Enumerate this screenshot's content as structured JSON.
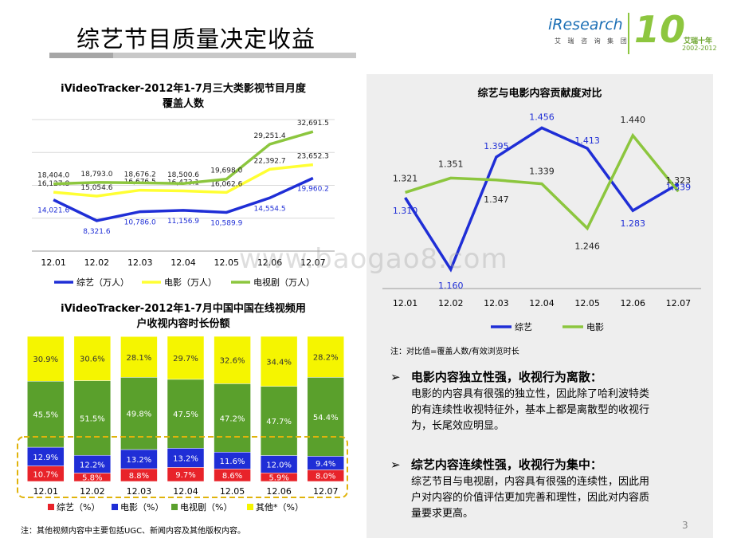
{
  "page": {
    "title": "综艺节目质量决定收益",
    "page_number": "3",
    "watermark": "www.baogao8.com"
  },
  "logo": {
    "brand": "iResearch",
    "brand_cn": "艾 瑞 咨 询 集 团",
    "anniv_text": "艾瑞十年",
    "anniv_years": "2002-2012",
    "anniv_number": "10",
    "brand_color": "#1c6fb5",
    "anniv_color": "#8dc63f"
  },
  "chart_data": [
    {
      "type": "line",
      "title_line1": "iVideoTracker-2012年1-7月三大类影视节目月度",
      "title_line2": "覆盖人数",
      "categories": [
        "12.01",
        "12.02",
        "12.03",
        "12.04",
        "12.05",
        "12.06",
        "12.07"
      ],
      "series": [
        {
          "name": "综艺（万人）",
          "color": "#1f2ed6",
          "values": [
            14021.6,
            8321.6,
            10786.0,
            11156.9,
            10589.9,
            14554.5,
            19960.2
          ],
          "labels": [
            "14,021.6",
            "8,321.6",
            "10,786.0",
            "11,156.9",
            "10,589.9",
            "14,554.5",
            "19,960.2"
          ]
        },
        {
          "name": "电影（万人）",
          "color": "#ffff33",
          "values": [
            16127.8,
            15054.6,
            16676.5,
            16473.1,
            16062.6,
            22392.7,
            23652.3
          ],
          "labels": [
            "16,127.8",
            "15,054.6",
            "16,676.5",
            "16,473.1",
            "16,062.6",
            "22,392.7",
            "23,652.3"
          ]
        },
        {
          "name": "电视剧（万人）",
          "color": "#8cc63e",
          "values": [
            18404.0,
            18793.0,
            18676.2,
            18500.6,
            19698.0,
            29251.4,
            32691.5
          ],
          "labels": [
            "18,404.0",
            "18,793.0",
            "18,676.2",
            "18,500.6",
            "19,698.0",
            "29,251.4",
            "32,691.5"
          ]
        }
      ],
      "ylim": [
        0,
        36000
      ]
    },
    {
      "type": "bar",
      "stacked": true,
      "title_line1": "iVideoTracker-2012年1-7月中国中国在线视频用",
      "title_line2": "户收视内容时长份额",
      "categories": [
        "12.01",
        "12.02",
        "12.03",
        "12.04",
        "12.05",
        "12.06",
        "12.07"
      ],
      "series": [
        {
          "name": "综艺（%）",
          "color": "#e8232a",
          "values": [
            10.7,
            5.8,
            8.8,
            9.7,
            8.6,
            5.9,
            8.0
          ],
          "labels": [
            "10.7%",
            "5.8%",
            "8.8%",
            "9.7%",
            "8.6%",
            "5.9%",
            "8.0%"
          ]
        },
        {
          "name": "电影（%）",
          "color": "#1f2ed6",
          "values": [
            12.9,
            12.2,
            13.2,
            13.2,
            11.6,
            12.0,
            9.4
          ],
          "labels": [
            "12.9%",
            "12.2%",
            "13.2%",
            "13.2%",
            "11.6%",
            "12.0%",
            "9.4%"
          ]
        },
        {
          "name": "电视剧（%）",
          "color": "#5aa02c",
          "values": [
            45.5,
            51.5,
            49.8,
            47.5,
            47.2,
            47.7,
            54.4
          ],
          "labels": [
            "45.5%",
            "51.5%",
            "49.8%",
            "47.5%",
            "47.2%",
            "47.7%",
            "54.4%"
          ]
        },
        {
          "name": "其他*（%）",
          "color": "#f5f500",
          "values": [
            30.9,
            30.6,
            28.1,
            29.7,
            32.6,
            34.4,
            28.2
          ],
          "labels": [
            "30.9%",
            "30.6%",
            "28.1%",
            "29.7%",
            "32.6%",
            "34.4%",
            "28.2%"
          ]
        }
      ],
      "ylim": [
        0,
        100
      ]
    },
    {
      "type": "line",
      "title": "综艺与电影内容贡献度对比",
      "categories": [
        "12.01",
        "12.02",
        "12.03",
        "12.04",
        "12.05",
        "12.06",
        "12.07"
      ],
      "series": [
        {
          "name": "综艺",
          "color": "#1f2ed6",
          "values": [
            1.31,
            1.16,
            1.395,
            1.456,
            1.413,
            1.283,
            1.339
          ],
          "labels": [
            "1.310",
            "1.160",
            "1.395",
            "1.456",
            "1.413",
            "1.283",
            "1.339"
          ]
        },
        {
          "name": "电影",
          "color": "#8cc63e",
          "values": [
            1.321,
            1.351,
            1.347,
            1.339,
            1.246,
            1.44,
            1.323
          ],
          "labels": [
            "1.321",
            "1.351",
            "1.347",
            "1.339",
            "1.246",
            "1.440",
            "1.323"
          ]
        }
      ],
      "ylim": [
        1.12,
        1.5
      ]
    }
  ],
  "notes": {
    "bottom_left": "注：其他视频内容中主要包括UGC、新闻内容及其他版权内容。",
    "panel": "注：对比值=覆盖人数/有效浏览时长"
  },
  "sections": [
    {
      "bullet": "➢",
      "heading": "电影内容独立性强，收视行为离散：",
      "body": [
        "电影的内容具有很强的独立性，因此除了哈利波特类",
        "的有连续性收视特征外，基本上都是离散型的收视行",
        "为，长尾效应明显。"
      ]
    },
    {
      "bullet": "➢",
      "heading": "综艺内容连续性强，收视行为集中：",
      "body": [
        "综艺节目与电视剧，内容具有很强的连续性，因此用",
        "户对内容的价值评估更加完善和理性，因此对内容质",
        "量要求更高。"
      ]
    }
  ]
}
